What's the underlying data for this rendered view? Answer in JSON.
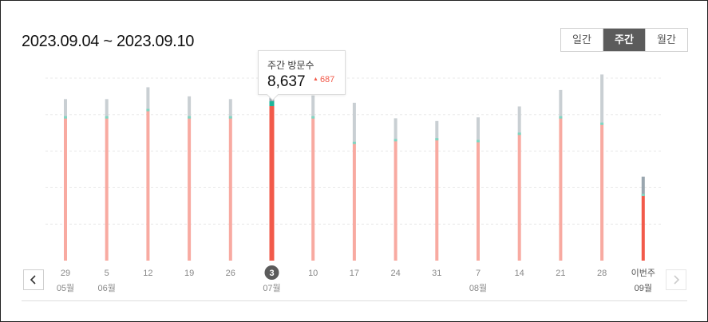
{
  "header": {
    "date_range": "2023.09.04 ~ 2023.09.10"
  },
  "period_tabs": [
    {
      "label": "일간",
      "active": false
    },
    {
      "label": "주간",
      "active": true
    },
    {
      "label": "월간",
      "active": false
    }
  ],
  "tooltip": {
    "label": "주간 방문수",
    "value": "8,637",
    "change": "687",
    "change_icon": "triangle-up-icon"
  },
  "nav": {
    "prev_icon": "chevron-left-icon",
    "next_icon": "chevron-right-icon",
    "next_enabled": false
  },
  "colors": {
    "bar_main": "#f8aaa1",
    "bar_main_selected": "#f25a4a",
    "bar_top": "#c9cfd3",
    "bar_top_selected": "#9aa6af",
    "divider": "#7fd6c2",
    "divider_selected": "#1fb59a",
    "selected_date_badge": "#5b5b5b",
    "tooltip_change": "#f25a4a"
  },
  "chart_data": {
    "type": "bar",
    "stacked": true,
    "categories": [
      "29",
      "5",
      "12",
      "19",
      "26",
      "3",
      "10",
      "17",
      "24",
      "31",
      "7",
      "14",
      "21",
      "28",
      "이번주"
    ],
    "month_labels": [
      "05월",
      "06월",
      "",
      "",
      "",
      "07월",
      "",
      "",
      "",
      "",
      "08월",
      "",
      "",
      "",
      "09월"
    ],
    "selected_index": 5,
    "selected_category": "3",
    "series": [
      {
        "values": [
          7.85,
          7.85,
          8.25,
          7.85,
          7.85,
          8.6,
          7.85,
          6.45,
          6.6,
          6.65,
          6.55,
          6.95,
          7.85,
          7.5,
          3.6
        ]
      },
      {
        "values": [
          1.0,
          1.0,
          1.25,
          1.15,
          1.0,
          1.3,
          1.2,
          2.2,
          1.2,
          1.0,
          1.3,
          1.5,
          1.5,
          2.7,
          1.0
        ]
      }
    ],
    "ylim": [
      0,
      10
    ],
    "grid": true
  }
}
